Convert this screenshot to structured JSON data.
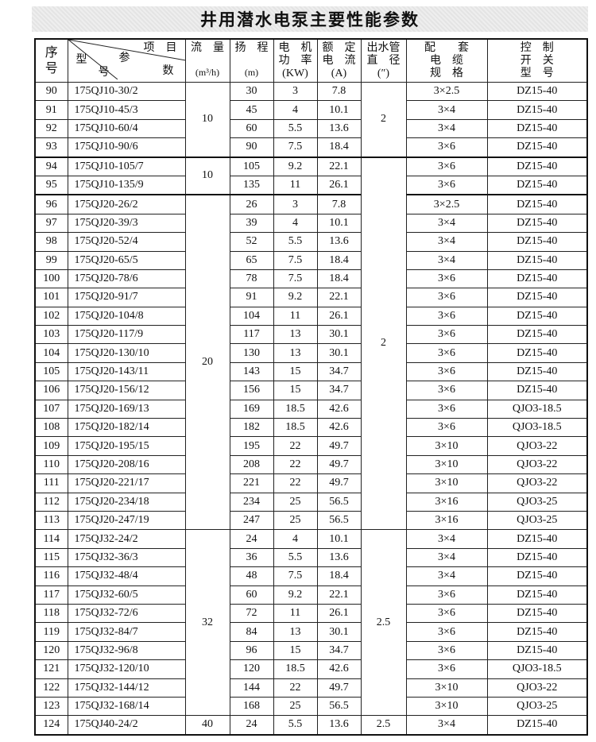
{
  "title": "井用潜水电泵主要性能参数",
  "headers": {
    "seq": "序\n号",
    "diag_item": "项　目",
    "diag_param": "参",
    "diag_type": "型",
    "diag_num": "号",
    "diag_shu": "数",
    "flow": "流　量",
    "flow_unit": "(m³/h)",
    "head": "扬　程",
    "head_unit": "(m)",
    "power": "电　机\n功　率\n(KW)",
    "current": "额　定\n电　流\n(A)",
    "pipe": "出水管\n直　径\n(″)",
    "cable": "配　　套\n电　缆\n规　格",
    "switch": "控　制\n开　关\n型　号"
  },
  "flow_groups": [
    {
      "value": "10",
      "span": 4
    },
    {
      "value": "10",
      "span": 2
    },
    {
      "value": "20",
      "span": 18
    },
    {
      "value": "32",
      "span": 10
    },
    {
      "value": "40",
      "span": 1
    }
  ],
  "pipe_groups": [
    {
      "value": "2",
      "span": 4
    },
    {
      "value": "2",
      "span": 20
    },
    {
      "value": "2.5",
      "span": 10
    },
    {
      "value": "2.5",
      "span": 1
    }
  ],
  "rows": [
    [
      "90",
      "175QJ10-30/2",
      "30",
      "3",
      "7.8",
      "3×2.5",
      "DZ15-40"
    ],
    [
      "91",
      "175QJ10-45/3",
      "45",
      "4",
      "10.1",
      "3×4",
      "DZ15-40"
    ],
    [
      "92",
      "175QJ10-60/4",
      "60",
      "5.5",
      "13.6",
      "3×4",
      "DZ15-40"
    ],
    [
      "93",
      "175QJ10-90/6",
      "90",
      "7.5",
      "18.4",
      "3×6",
      "DZ15-40"
    ],
    [
      "94",
      "175QJ10-105/7",
      "105",
      "9.2",
      "22.1",
      "3×6",
      "DZ15-40"
    ],
    [
      "95",
      "175QJ10-135/9",
      "135",
      "11",
      "26.1",
      "3×6",
      "DZ15-40"
    ],
    [
      "96",
      "175QJ20-26/2",
      "26",
      "3",
      "7.8",
      "3×2.5",
      "DZ15-40"
    ],
    [
      "97",
      "175QJ20-39/3",
      "39",
      "4",
      "10.1",
      "3×4",
      "DZ15-40"
    ],
    [
      "98",
      "175QJ20-52/4",
      "52",
      "5.5",
      "13.6",
      "3×4",
      "DZ15-40"
    ],
    [
      "99",
      "175QJ20-65/5",
      "65",
      "7.5",
      "18.4",
      "3×4",
      "DZ15-40"
    ],
    [
      "100",
      "175QJ20-78/6",
      "78",
      "7.5",
      "18.4",
      "3×6",
      "DZ15-40"
    ],
    [
      "101",
      "175QJ20-91/7",
      "91",
      "9.2",
      "22.1",
      "3×6",
      "DZ15-40"
    ],
    [
      "102",
      "175QJ20-104/8",
      "104",
      "11",
      "26.1",
      "3×6",
      "DZ15-40"
    ],
    [
      "103",
      "175QJ20-117/9",
      "117",
      "13",
      "30.1",
      "3×6",
      "DZ15-40"
    ],
    [
      "104",
      "175QJ20-130/10",
      "130",
      "13",
      "30.1",
      "3×6",
      "DZ15-40"
    ],
    [
      "105",
      "175QJ20-143/11",
      "143",
      "15",
      "34.7",
      "3×6",
      "DZ15-40"
    ],
    [
      "106",
      "175QJ20-156/12",
      "156",
      "15",
      "34.7",
      "3×6",
      "DZ15-40"
    ],
    [
      "107",
      "175QJ20-169/13",
      "169",
      "18.5",
      "42.6",
      "3×6",
      "QJO3-18.5"
    ],
    [
      "108",
      "175QJ20-182/14",
      "182",
      "18.5",
      "42.6",
      "3×6",
      "QJO3-18.5"
    ],
    [
      "109",
      "175QJ20-195/15",
      "195",
      "22",
      "49.7",
      "3×10",
      "QJO3-22"
    ],
    [
      "110",
      "175QJ20-208/16",
      "208",
      "22",
      "49.7",
      "3×10",
      "QJO3-22"
    ],
    [
      "111",
      "175QJ20-221/17",
      "221",
      "22",
      "49.7",
      "3×10",
      "QJO3-22"
    ],
    [
      "112",
      "175QJ20-234/18",
      "234",
      "25",
      "56.5",
      "3×16",
      "QJO3-25"
    ],
    [
      "113",
      "175QJ20-247/19",
      "247",
      "25",
      "56.5",
      "3×16",
      "QJO3-25"
    ],
    [
      "114",
      "175QJ32-24/2",
      "24",
      "4",
      "10.1",
      "3×4",
      "DZ15-40"
    ],
    [
      "115",
      "175QJ32-36/3",
      "36",
      "5.5",
      "13.6",
      "3×4",
      "DZ15-40"
    ],
    [
      "116",
      "175QJ32-48/4",
      "48",
      "7.5",
      "18.4",
      "3×4",
      "DZ15-40"
    ],
    [
      "117",
      "175QJ32-60/5",
      "60",
      "9.2",
      "22.1",
      "3×6",
      "DZ15-40"
    ],
    [
      "118",
      "175QJ32-72/6",
      "72",
      "11",
      "26.1",
      "3×6",
      "DZ15-40"
    ],
    [
      "119",
      "175QJ32-84/7",
      "84",
      "13",
      "30.1",
      "3×6",
      "DZ15-40"
    ],
    [
      "120",
      "175QJ32-96/8",
      "96",
      "15",
      "34.7",
      "3×6",
      "DZ15-40"
    ],
    [
      "121",
      "175QJ32-120/10",
      "120",
      "18.5",
      "42.6",
      "3×6",
      "QJO3-18.5"
    ],
    [
      "122",
      "175QJ32-144/12",
      "144",
      "22",
      "49.7",
      "3×10",
      "QJO3-22"
    ],
    [
      "123",
      "175QJ32-168/14",
      "168",
      "25",
      "56.5",
      "3×10",
      "QJO3-25"
    ],
    [
      "124",
      "175QJ40-24/2",
      "24",
      "5.5",
      "13.6",
      "3×4",
      "DZ15-40"
    ]
  ]
}
